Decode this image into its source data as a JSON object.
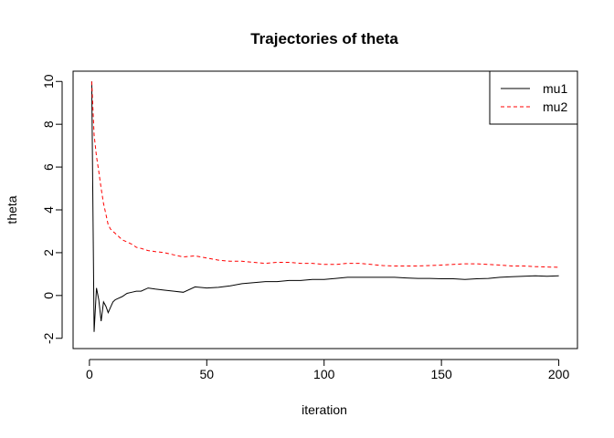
{
  "chart_data": {
    "type": "line",
    "title": "Trajectories of theta",
    "xlabel": "iteration",
    "ylabel": "theta",
    "xlim": [
      1,
      200
    ],
    "ylim": [
      -2,
      10
    ],
    "x_ticks": [
      0,
      50,
      100,
      150,
      200
    ],
    "y_ticks": [
      -2,
      0,
      2,
      4,
      6,
      8,
      10
    ],
    "legend_position": "top-right",
    "series": [
      {
        "name": "mu1",
        "color": "#000000",
        "dash": "solid",
        "x": [
          1,
          2,
          3,
          4,
          5,
          6,
          7,
          8,
          9,
          10,
          11,
          12,
          14,
          16,
          18,
          20,
          22,
          25,
          28,
          32,
          36,
          40,
          45,
          50,
          55,
          60,
          65,
          70,
          75,
          80,
          85,
          90,
          95,
          100,
          105,
          110,
          115,
          120,
          125,
          130,
          135,
          140,
          145,
          150,
          155,
          160,
          165,
          170,
          175,
          180,
          185,
          190,
          195,
          200
        ],
        "values": [
          10.0,
          -1.7,
          0.35,
          -0.2,
          -1.2,
          -0.3,
          -0.5,
          -0.8,
          -0.55,
          -0.3,
          -0.2,
          -0.15,
          -0.05,
          0.1,
          0.15,
          0.2,
          0.2,
          0.35,
          0.3,
          0.25,
          0.2,
          0.15,
          0.4,
          0.35,
          0.38,
          0.45,
          0.55,
          0.6,
          0.65,
          0.65,
          0.7,
          0.7,
          0.75,
          0.75,
          0.8,
          0.85,
          0.85,
          0.85,
          0.85,
          0.85,
          0.82,
          0.8,
          0.8,
          0.78,
          0.78,
          0.75,
          0.78,
          0.8,
          0.85,
          0.88,
          0.9,
          0.92,
          0.9,
          0.92
        ]
      },
      {
        "name": "mu2",
        "color": "#ff0000",
        "dash": "dashed",
        "x": [
          1,
          2,
          3,
          4,
          5,
          6,
          7,
          8,
          9,
          10,
          12,
          14,
          16,
          18,
          20,
          22,
          25,
          28,
          32,
          36,
          40,
          45,
          50,
          55,
          60,
          65,
          70,
          75,
          80,
          85,
          90,
          95,
          100,
          105,
          110,
          115,
          120,
          125,
          130,
          135,
          140,
          145,
          150,
          155,
          160,
          165,
          170,
          175,
          180,
          185,
          190,
          195,
          200
        ],
        "values": [
          10.0,
          7.5,
          6.5,
          5.8,
          5.0,
          4.3,
          3.8,
          3.3,
          3.1,
          3.0,
          2.8,
          2.6,
          2.5,
          2.4,
          2.25,
          2.2,
          2.1,
          2.05,
          2.0,
          1.9,
          1.8,
          1.85,
          1.75,
          1.65,
          1.6,
          1.6,
          1.55,
          1.5,
          1.55,
          1.55,
          1.5,
          1.5,
          1.45,
          1.45,
          1.5,
          1.5,
          1.45,
          1.4,
          1.38,
          1.38,
          1.38,
          1.4,
          1.42,
          1.45,
          1.48,
          1.48,
          1.45,
          1.42,
          1.38,
          1.38,
          1.35,
          1.33,
          1.32
        ]
      }
    ]
  }
}
